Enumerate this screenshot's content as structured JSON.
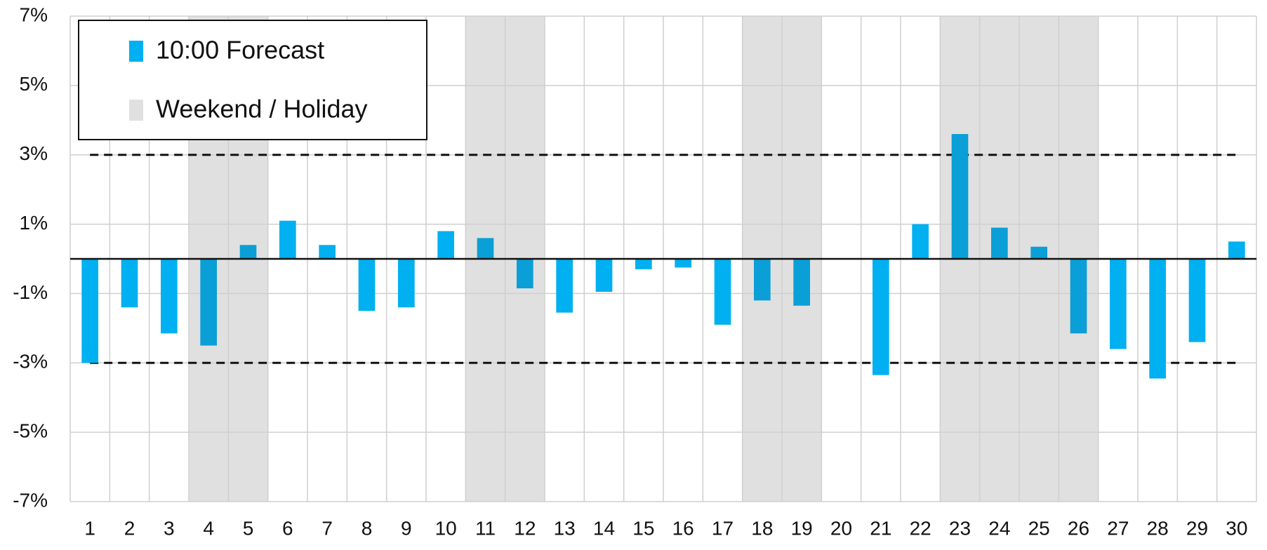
{
  "chart_data": {
    "type": "bar",
    "categories": [
      "1",
      "2",
      "3",
      "4",
      "5",
      "6",
      "7",
      "8",
      "9",
      "10",
      "11",
      "12",
      "13",
      "14",
      "15",
      "16",
      "17",
      "18",
      "19",
      "20",
      "21",
      "22",
      "23",
      "24",
      "25",
      "26",
      "27",
      "28",
      "29",
      "30"
    ],
    "series": [
      {
        "name": "10:00 Forecast",
        "color": "#00b0f0",
        "values": [
          -3.0,
          -1.4,
          -2.15,
          -2.5,
          0.4,
          1.1,
          0.4,
          -1.5,
          -1.4,
          0.8,
          0.6,
          -0.85,
          -1.55,
          -0.95,
          -0.3,
          -0.25,
          -1.9,
          -1.2,
          -1.35,
          null,
          -3.35,
          1.0,
          3.6,
          0.9,
          0.35,
          -2.15,
          -2.6,
          -3.45,
          -2.4,
          0.5
        ]
      }
    ],
    "shade": {
      "name": "Weekend / Holiday",
      "color": "#e0e0e0",
      "bar_color": "#0a9fd6",
      "categories": [
        "4",
        "5",
        "11",
        "12",
        "18",
        "19",
        "23",
        "24",
        "25",
        "26"
      ]
    },
    "reference_lines": [
      3,
      -3
    ],
    "ylim": [
      -7,
      7
    ],
    "yticks": [
      {
        "value": -7,
        "label": "-7%"
      },
      {
        "value": -5,
        "label": "-5%"
      },
      {
        "value": -3,
        "label": "-3%"
      },
      {
        "value": -1,
        "label": "-1%"
      },
      {
        "value": 1,
        "label": "1%"
      },
      {
        "value": 3,
        "label": "3%"
      },
      {
        "value": 5,
        "label": "5%"
      },
      {
        "value": 7,
        "label": "7%"
      }
    ],
    "grid": true,
    "legend": "upper left"
  }
}
